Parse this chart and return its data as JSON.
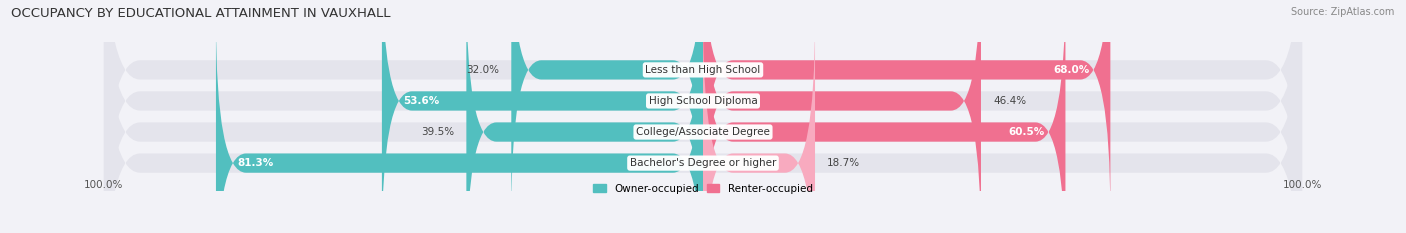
{
  "title": "OCCUPANCY BY EDUCATIONAL ATTAINMENT IN VAUXHALL",
  "source": "Source: ZipAtlas.com",
  "categories": [
    "Less than High School",
    "High School Diploma",
    "College/Associate Degree",
    "Bachelor's Degree or higher"
  ],
  "owner_values": [
    32.0,
    53.6,
    39.5,
    81.3
  ],
  "renter_values": [
    68.0,
    46.4,
    60.5,
    18.7
  ],
  "owner_color": "#52BFBF",
  "renter_color": "#F07090",
  "renter_color_light": "#F8AABF",
  "background_color": "#F2F2F7",
  "bar_background": "#E4E4EC",
  "title_fontsize": 9.5,
  "source_fontsize": 7.0,
  "label_fontsize": 7.5,
  "cat_fontsize": 7.5,
  "axis_label": "100.0%",
  "bar_height": 0.62,
  "bar_gap": 0.18,
  "legend_owner": "Owner-occupied",
  "legend_renter": "Renter-occupied"
}
